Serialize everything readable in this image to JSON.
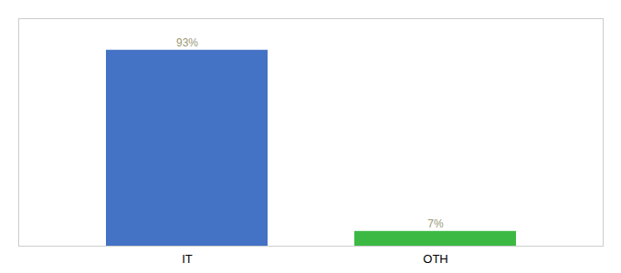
{
  "chart_data": {
    "type": "bar",
    "categories": [
      "IT",
      "OTH"
    ],
    "values": [
      93,
      7
    ],
    "value_labels": [
      "93%",
      "7%"
    ],
    "colors": [
      "#4472c4",
      "#3cb943"
    ],
    "ylim": [
      0,
      108
    ],
    "data_labels": true,
    "tick_labels": "x",
    "grid": false
  }
}
